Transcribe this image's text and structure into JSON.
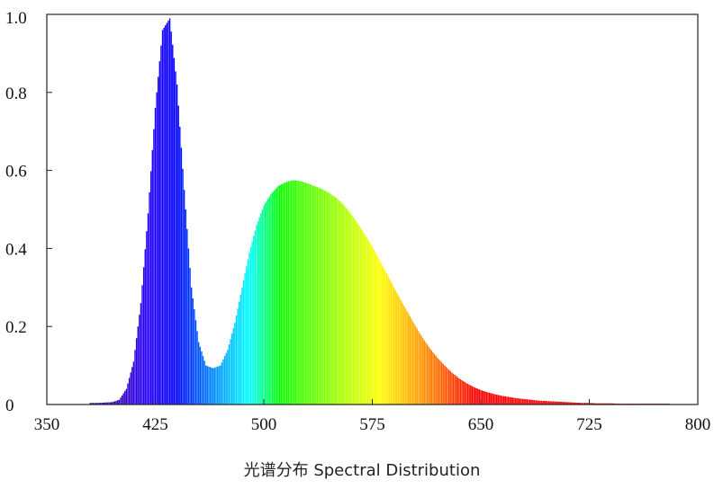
{
  "chart_data": {
    "type": "bar",
    "title": "",
    "xlabel": "光谱分布 Spectral Distribution",
    "ylabel": "",
    "xlim": [
      350,
      800
    ],
    "ylim": [
      0,
      1.0
    ],
    "x_ticks": [
      "350",
      "425",
      "500",
      "575",
      "650",
      "725",
      "800"
    ],
    "y_ticks": [
      "0",
      "0.2",
      "0.4",
      "0.6",
      "0.8",
      "1.0"
    ],
    "grid": false,
    "legend": "none",
    "color_scale": "wavelength spectrum (violet to red)",
    "series": [
      {
        "x": [
          380,
          385,
          390,
          395,
          400,
          405,
          410,
          415,
          420,
          425,
          430,
          435,
          440,
          445,
          450,
          455,
          460,
          465,
          470,
          475,
          480,
          485,
          490,
          495,
          500,
          505,
          510,
          515,
          520,
          525,
          530,
          535,
          540,
          545,
          550,
          555,
          560,
          565,
          570,
          575,
          580,
          585,
          590,
          595,
          600,
          605,
          610,
          615,
          620,
          625,
          630,
          635,
          640,
          645,
          650,
          655,
          660,
          665,
          670,
          675,
          680,
          685,
          690,
          695,
          700,
          705,
          710,
          715,
          720,
          725,
          730,
          735,
          740,
          745,
          750,
          755,
          760,
          765,
          770,
          775,
          780
        ],
        "values": [
          0.004,
          0.004,
          0.005,
          0.006,
          0.012,
          0.04,
          0.11,
          0.26,
          0.49,
          0.76,
          0.96,
          0.99,
          0.82,
          0.55,
          0.3,
          0.16,
          0.1,
          0.093,
          0.1,
          0.14,
          0.21,
          0.3,
          0.39,
          0.46,
          0.51,
          0.54,
          0.56,
          0.57,
          0.575,
          0.573,
          0.567,
          0.56,
          0.553,
          0.543,
          0.53,
          0.513,
          0.49,
          0.464,
          0.435,
          0.405,
          0.37,
          0.336,
          0.3,
          0.266,
          0.233,
          0.2,
          0.17,
          0.143,
          0.12,
          0.1,
          0.082,
          0.067,
          0.055,
          0.045,
          0.037,
          0.031,
          0.026,
          0.022,
          0.019,
          0.016,
          0.014,
          0.012,
          0.01,
          0.009,
          0.008,
          0.007,
          0.006,
          0.005,
          0.004,
          0.004,
          0.003,
          0.003,
          0.003,
          0.002,
          0.002,
          0.002,
          0.002,
          0.002,
          0.002,
          0.002,
          0.002
        ]
      }
    ]
  }
}
